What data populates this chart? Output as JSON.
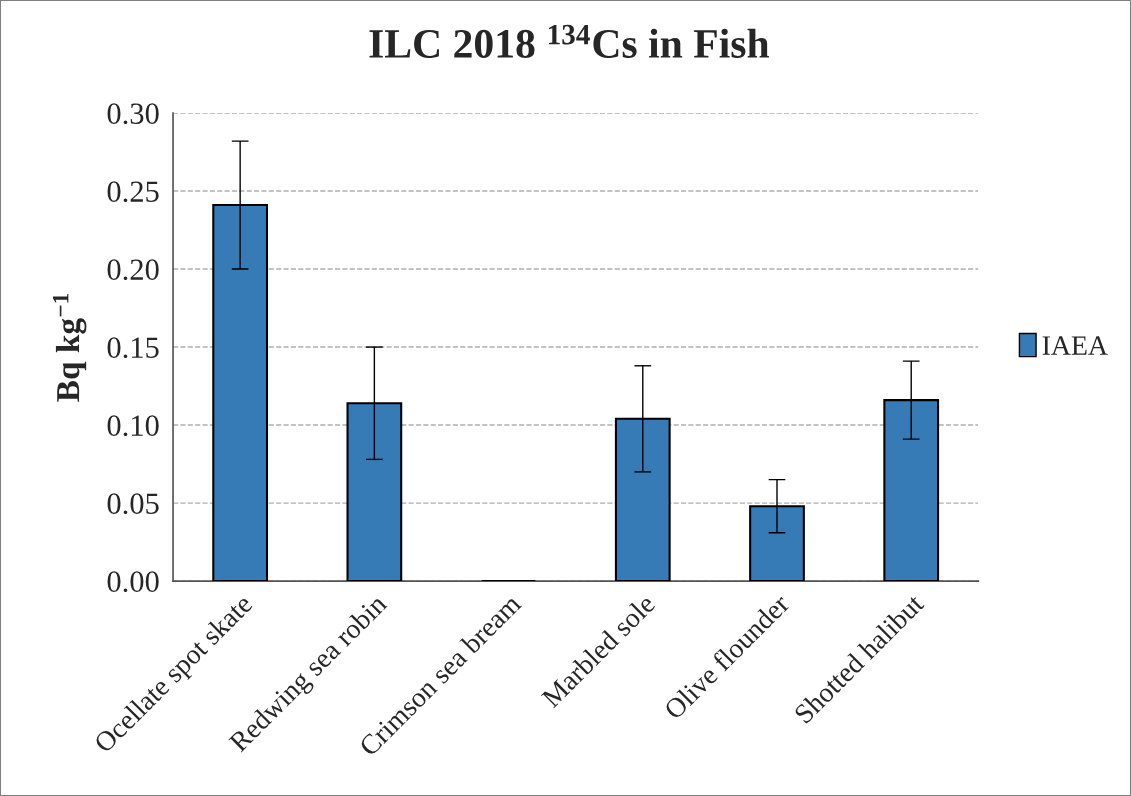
{
  "chart_data": {
    "type": "bar",
    "title": "ILC 2018 $^{134}$Cs in Fish",
    "ylabel": "Bq kg$^{−1}$",
    "categories": [
      "Ocellate spot skate",
      "Redwing sea robin",
      "Crimson sea bream",
      "Marbled sole",
      "Olive flounder",
      "Shotted halibut"
    ],
    "series": [
      {
        "name": "IAEA",
        "color": "#367bb6",
        "colors": [
          "#367bb6",
          "#367bb6",
          "#000000",
          "#367bb6",
          "#367bb6",
          "#367bb6"
        ],
        "values": [
          0.241,
          0.114,
          0,
          0.104,
          0.048,
          0.116
        ],
        "errors": [
          0.041,
          0.036,
          null,
          0.034,
          0.017,
          0.025
        ]
      }
    ],
    "ylim": [
      0,
      0.3
    ],
    "yticks": [
      {
        "value": 0,
        "label": "0.00"
      },
      {
        "value": 0.05,
        "label": "0.05"
      },
      {
        "value": 0.1,
        "label": "0.10"
      },
      {
        "value": 0.15,
        "label": "0.15"
      },
      {
        "value": 0.2,
        "label": "0.20"
      },
      {
        "value": 0.25,
        "label": "0.25"
      },
      {
        "value": 0.3,
        "label": "0.30"
      }
    ],
    "grid": "y",
    "legend": "right"
  }
}
